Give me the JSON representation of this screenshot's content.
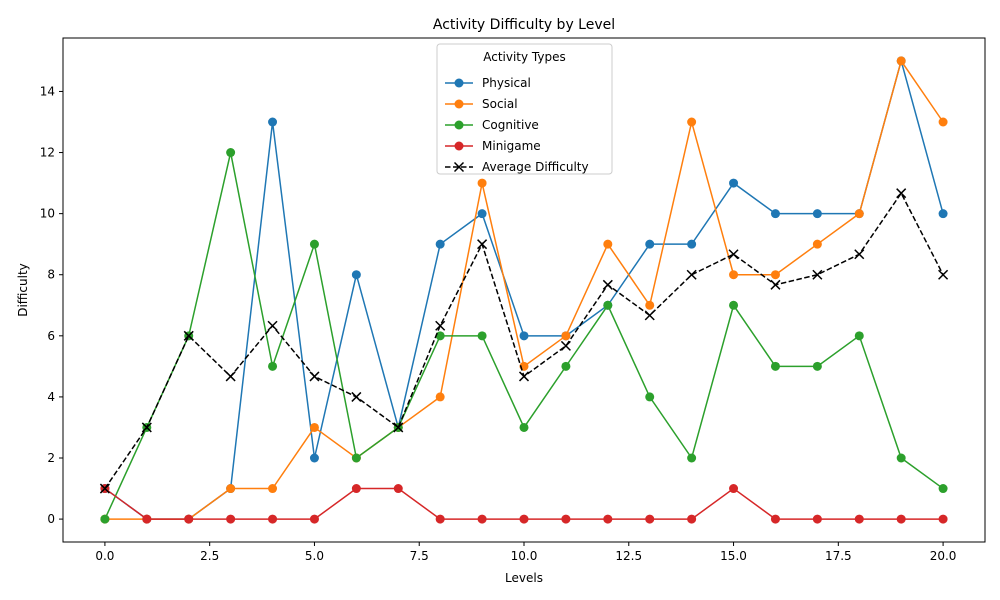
{
  "chart_data": {
    "type": "line",
    "title": "Activity Difficulty by Level",
    "xlabel": "Levels",
    "ylabel": "Difficulty",
    "xlim": [
      -1.0,
      21.0
    ],
    "ylim": [
      -0.75,
      15.75
    ],
    "xticks": [
      0.0,
      2.5,
      5.0,
      7.5,
      10.0,
      12.5,
      15.0,
      17.5,
      20.0
    ],
    "xtick_labels": [
      "0.0",
      "2.5",
      "5.0",
      "7.5",
      "10.0",
      "12.5",
      "15.0",
      "17.5",
      "20.0"
    ],
    "yticks": [
      0,
      2,
      4,
      6,
      8,
      10,
      12,
      14
    ],
    "ytick_labels": [
      "0",
      "2",
      "4",
      "6",
      "8",
      "10",
      "12",
      "14"
    ],
    "grid": false,
    "legend": {
      "title": "Activity Types",
      "placement": "top-center"
    },
    "x": [
      0,
      1,
      2,
      3,
      4,
      5,
      6,
      7,
      8,
      9,
      10,
      11,
      12,
      13,
      14,
      15,
      16,
      17,
      18,
      19,
      20
    ],
    "series": [
      {
        "name": "Physical",
        "color": "#1f77b4",
        "marker": "circle",
        "style": "solid",
        "values": [
          1,
          0,
          0,
          1,
          13,
          2,
          8,
          3,
          9,
          10,
          6,
          6,
          7,
          9,
          9,
          11,
          10,
          10,
          10,
          15,
          10
        ]
      },
      {
        "name": "Social",
        "color": "#ff7f0e",
        "marker": "circle",
        "style": "solid",
        "values": [
          0,
          0,
          0,
          1,
          1,
          3,
          2,
          3,
          4,
          11,
          5,
          6,
          9,
          7,
          13,
          8,
          8,
          9,
          10,
          15,
          13
        ]
      },
      {
        "name": "Cognitive",
        "color": "#2ca02c",
        "marker": "circle",
        "style": "solid",
        "values": [
          0,
          3,
          6,
          12,
          5,
          9,
          2,
          3,
          6,
          6,
          3,
          5,
          7,
          4,
          2,
          7,
          5,
          5,
          6,
          2,
          1
        ]
      },
      {
        "name": "Minigame",
        "color": "#d62728",
        "marker": "circle",
        "style": "solid",
        "values": [
          1,
          0,
          0,
          0,
          0,
          0,
          1,
          1,
          0,
          0,
          0,
          0,
          0,
          0,
          0,
          1,
          0,
          0,
          0,
          0,
          0
        ]
      },
      {
        "name": "Average Difficulty",
        "color": "#000000",
        "marker": "x",
        "style": "dashed",
        "values": [
          1.0,
          3.0,
          6.0,
          4.67,
          6.33,
          4.67,
          4.0,
          3.0,
          6.33,
          9.0,
          4.67,
          5.67,
          7.67,
          6.67,
          8.0,
          8.67,
          7.67,
          8.0,
          8.67,
          10.67,
          8.0
        ]
      }
    ]
  }
}
